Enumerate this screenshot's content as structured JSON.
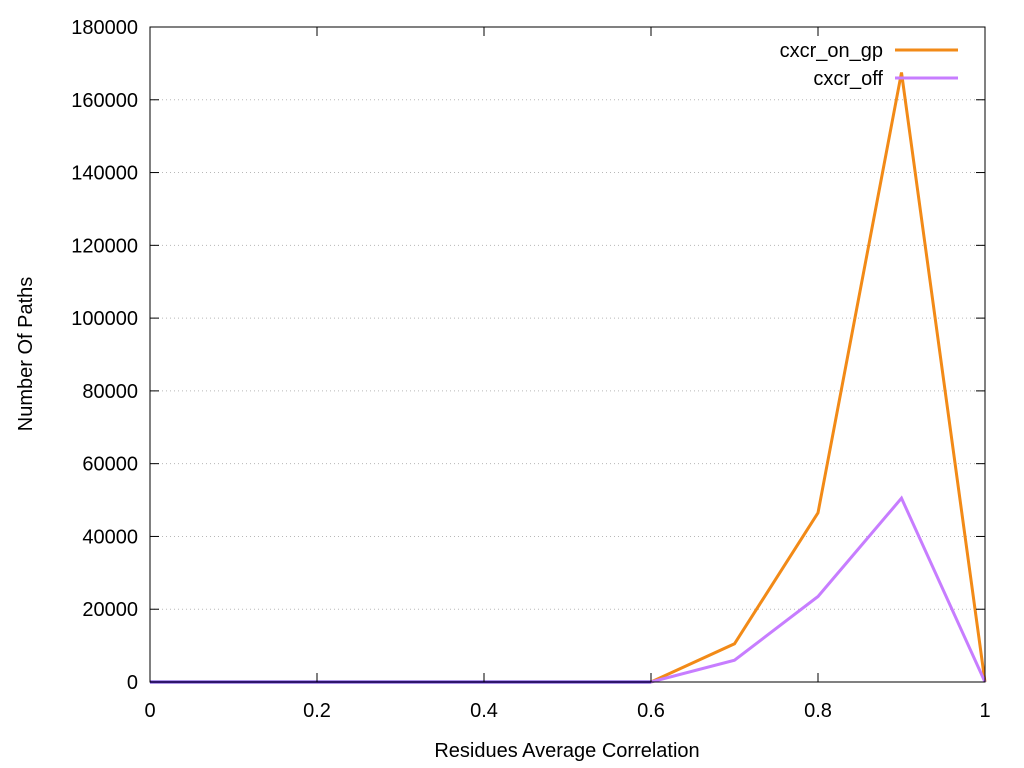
{
  "chart_data": {
    "type": "line",
    "xlabel": "Residues Average Correlation",
    "ylabel": "Number Of Paths",
    "xlim": [
      0,
      1
    ],
    "ylim": [
      0,
      180000
    ],
    "xticks": [
      "0",
      "0.2",
      "0.4",
      "0.6",
      "0.8",
      "1"
    ],
    "yticks": [
      "0",
      "20000",
      "40000",
      "60000",
      "80000",
      "100000",
      "120000",
      "140000",
      "160000",
      "180000"
    ],
    "grid": "horizontal dotted",
    "legend_position": "top-right",
    "x": [
      0,
      0.1,
      0.2,
      0.3,
      0.4,
      0.5,
      0.6,
      0.7,
      0.8,
      0.9,
      1.0
    ],
    "series": [
      {
        "name": "cxcr_on_gp",
        "color": "#f28a17",
        "values": [
          0,
          0,
          0,
          0,
          0,
          0,
          0,
          10500,
          46500,
          167500,
          0
        ]
      },
      {
        "name": "cxcr_off",
        "color": "#c77dff",
        "values": [
          0,
          0,
          0,
          0,
          0,
          0,
          0,
          6000,
          23500,
          50500,
          0
        ]
      }
    ],
    "baseline_color": "#5b2bd6"
  }
}
